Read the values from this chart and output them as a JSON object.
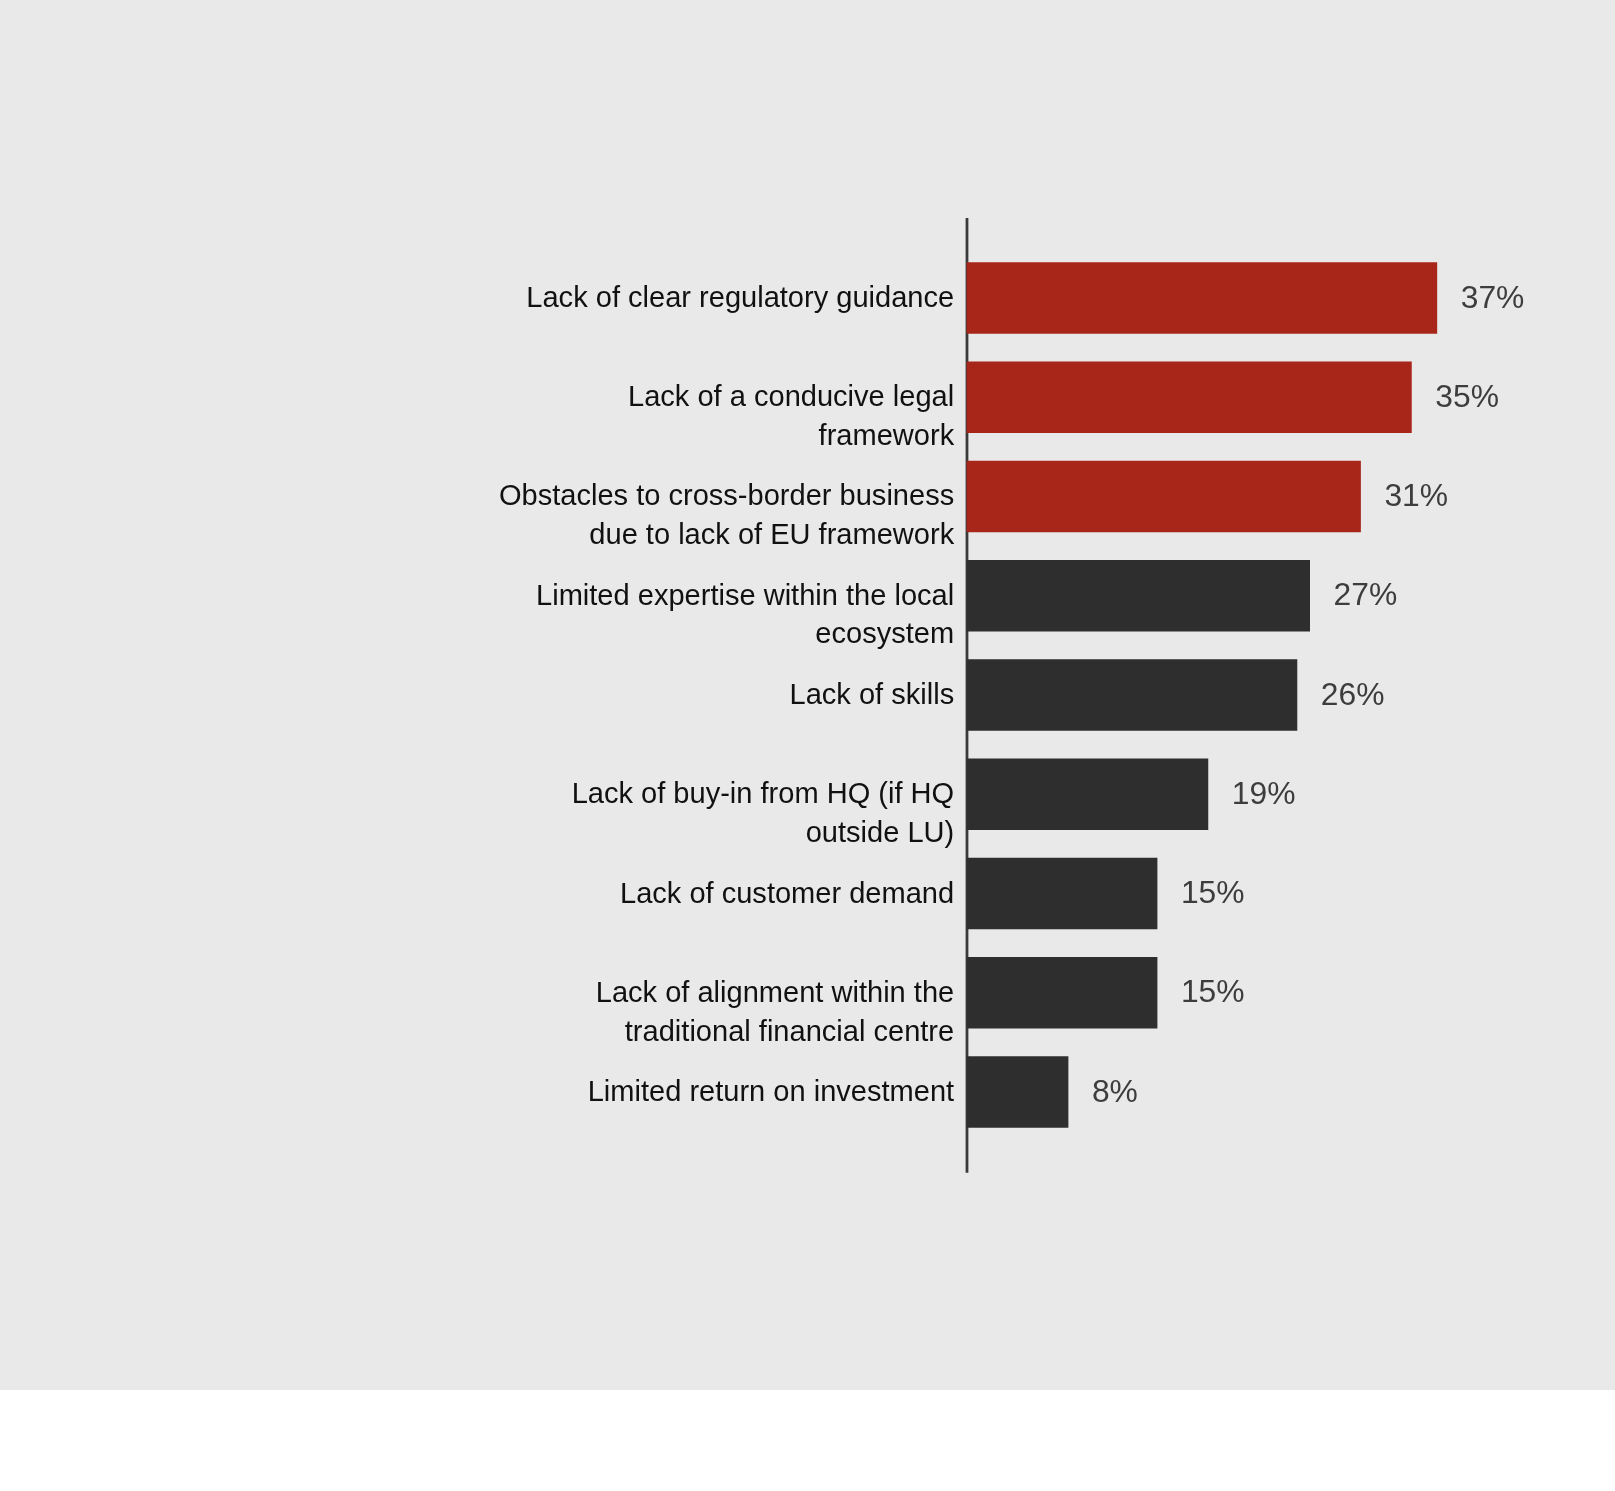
{
  "chart_data": {
    "type": "bar",
    "orientation": "horizontal",
    "categories": [
      "Lack of clear regulatory guidance",
      "Lack of a conducive legal framework",
      "Obstacles to cross-border business due to lack of EU framework",
      "Limited expertise within the local ecosystem",
      "Lack of skills",
      "Lack of buy-in from HQ (if HQ outside LU)",
      "Lack of customer demand",
      "Lack of alignment within the traditional financial centre",
      "Limited return on investment"
    ],
    "values": [
      37,
      35,
      31,
      27,
      26,
      19,
      15,
      15,
      8
    ],
    "colors": [
      "#a8251a",
      "#a8251a",
      "#a8251a",
      "#2e2e2e",
      "#2e2e2e",
      "#2e2e2e",
      "#2e2e2e",
      "#2e2e2e",
      "#2e2e2e"
    ],
    "value_labels": [
      "37%",
      "35%",
      "31%",
      "27%",
      "26%",
      "19%",
      "15%",
      "15%",
      "8%"
    ],
    "grid": false
  }
}
